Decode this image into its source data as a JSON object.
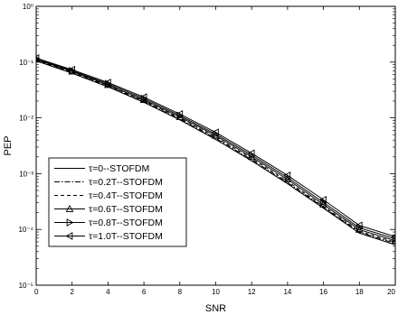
{
  "chart_data": {
    "type": "line",
    "title": "",
    "xlabel": "SNR",
    "ylabel": "PEP",
    "xlim": [
      0,
      20
    ],
    "ylim": [
      1e-05,
      1
    ],
    "yscale": "log",
    "grid": false,
    "legend_position": "bottom-left",
    "x_ticks": [
      "0",
      "2",
      "4",
      "6",
      "8",
      "10",
      "12",
      "14",
      "16",
      "18",
      "20"
    ],
    "y_ticks": [
      {
        "value": 1,
        "label": "10⁰"
      },
      {
        "value": 0.1,
        "label": "10⁻¹"
      },
      {
        "value": 0.01,
        "label": "10⁻²"
      },
      {
        "value": 0.001,
        "label": "10⁻³"
      },
      {
        "value": 0.0001,
        "label": "10⁻⁴"
      },
      {
        "value": 1e-05,
        "label": "10⁻⁵"
      }
    ],
    "x": [
      0,
      2,
      4,
      6,
      8,
      10,
      12,
      14,
      16,
      18,
      20
    ],
    "series": [
      {
        "name": "τ=0--STOFDM",
        "line": "solid",
        "marker": "none",
        "values": [
          0.105,
          0.063,
          0.036,
          0.019,
          0.0092,
          0.0041,
          0.0017,
          0.00066,
          0.00024,
          8.6e-05,
          5.3e-05
        ]
      },
      {
        "name": "τ=0.2T--STOFDM",
        "line": "dashdot",
        "marker": "none",
        "values": [
          0.107,
          0.064,
          0.037,
          0.0195,
          0.0095,
          0.0043,
          0.00178,
          0.00069,
          0.00025,
          8.9e-05,
          5.6e-05
        ]
      },
      {
        "name": "τ=0.4T--STOFDM",
        "line": "dashed",
        "marker": "none",
        "values": [
          0.109,
          0.066,
          0.038,
          0.0202,
          0.0099,
          0.0045,
          0.00188,
          0.00073,
          0.00026,
          9.3e-05,
          5.9e-05
        ]
      },
      {
        "name": "τ=0.6T--STOFDM",
        "line": "solid",
        "marker": "triangle-up",
        "values": [
          0.112,
          0.068,
          0.039,
          0.021,
          0.0104,
          0.0048,
          0.002,
          0.00079,
          0.00028,
          9.9e-05,
          6.3e-05
        ]
      },
      {
        "name": "τ=0.8T--STOFDM",
        "line": "solid",
        "marker": "triangle-right",
        "values": [
          0.115,
          0.07,
          0.041,
          0.0222,
          0.011,
          0.0051,
          0.00215,
          0.00085,
          0.000305,
          0.000107,
          6.8e-05
        ]
      },
      {
        "name": "τ=1.0T--STOFDM",
        "line": "solid",
        "marker": "triangle-left",
        "values": [
          0.118,
          0.073,
          0.043,
          0.0235,
          0.0117,
          0.0055,
          0.00232,
          0.00093,
          0.00034,
          0.000118,
          7.4e-05
        ]
      }
    ]
  }
}
